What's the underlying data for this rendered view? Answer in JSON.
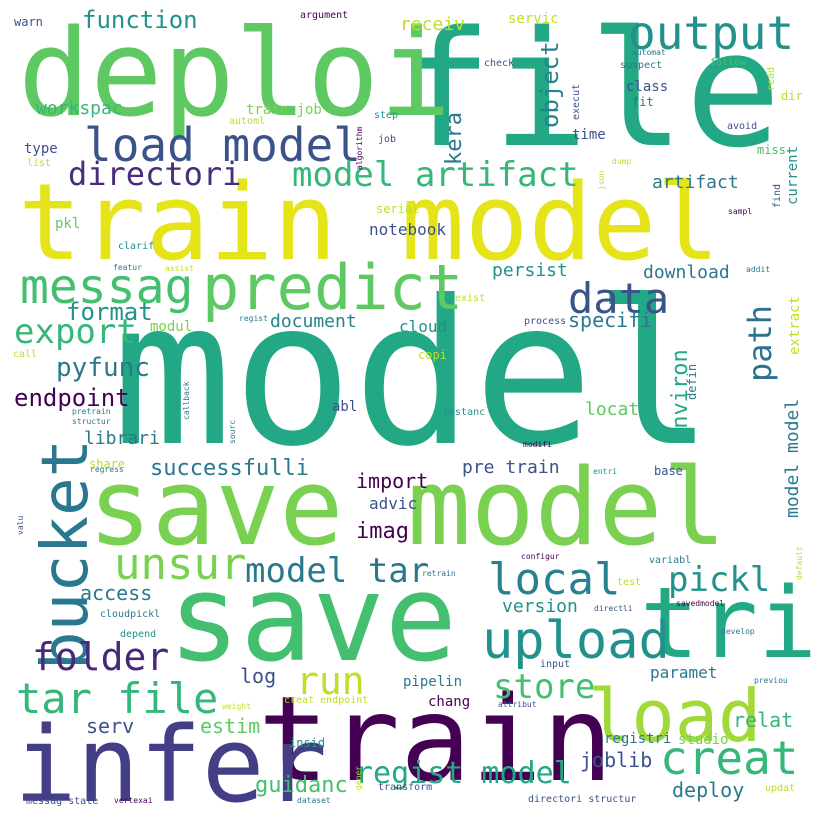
{
  "palette": {
    "dark_purple": "#440154",
    "indigo": "#3b528b",
    "slate_blue": "#414487",
    "teal_blue": "#2a788e",
    "teal": "#21918c",
    "green_teal": "#22a884",
    "green": "#44bf70",
    "lime": "#7ad151",
    "yellow_green": "#bddf26",
    "yellow": "#fde725"
  },
  "words": [
    {
      "id": "model",
      "text": "model",
      "color": "#22a884",
      "orientation": "horizontal"
    },
    {
      "id": "save-model",
      "text": "save model",
      "color": "#7ad151",
      "orientation": "horizontal"
    },
    {
      "id": "train-model",
      "text": "train model",
      "color": "#e4e419",
      "orientation": "horizontal"
    },
    {
      "id": "file",
      "text": "file",
      "color": "#22a884",
      "orientation": "horizontal"
    },
    {
      "id": "save",
      "text": "save",
      "color": "#44bf70",
      "orientation": "horizontal"
    },
    {
      "id": "deploi",
      "text": "deploi",
      "color": "#5ec962",
      "orientation": "horizontal"
    },
    {
      "id": "train",
      "text": "train",
      "color": "#440154",
      "orientation": "horizontal"
    },
    {
      "id": "infer",
      "text": "infer",
      "color": "#433e85",
      "orientation": "horizontal"
    },
    {
      "id": "tri",
      "text": "tri",
      "color": "#22a884",
      "orientation": "horizontal"
    },
    {
      "id": "predict",
      "text": "predict",
      "color": "#5ec962",
      "orientation": "horizontal"
    },
    {
      "id": "load",
      "text": "load",
      "color": "#a0da39",
      "orientation": "horizontal"
    },
    {
      "id": "bucket",
      "text": "bucket",
      "color": "#2a788e",
      "orientation": "vertical"
    },
    {
      "id": "load-model",
      "text": "load model",
      "color": "#3b528b",
      "orientation": "horizontal"
    },
    {
      "id": "output",
      "text": "output",
      "color": "#21918c",
      "orientation": "horizontal"
    },
    {
      "id": "messag",
      "text": "messag",
      "color": "#44bf70",
      "orientation": "horizontal"
    },
    {
      "id": "upload",
      "text": "upload",
      "color": "#21918c",
      "orientation": "horizontal"
    },
    {
      "id": "unsur",
      "text": "unsur",
      "color": "#7ad151",
      "orientation": "horizontal"
    },
    {
      "id": "local",
      "text": "local",
      "color": "#26828e",
      "orientation": "horizontal"
    },
    {
      "id": "creat",
      "text": "creat",
      "color": "#35b779",
      "orientation": "horizontal"
    },
    {
      "id": "tar-file",
      "text": "tar file",
      "color": "#35b779",
      "orientation": "horizontal"
    },
    {
      "id": "folder",
      "text": "folder",
      "color": "#482878",
      "orientation": "horizontal"
    },
    {
      "id": "data",
      "text": "data",
      "color": "#3b528b",
      "orientation": "horizontal"
    },
    {
      "id": "model-artifact",
      "text": "model artifact",
      "color": "#35b779",
      "orientation": "horizontal"
    },
    {
      "id": "directori",
      "text": "directori",
      "color": "#472d7b",
      "orientation": "horizontal"
    },
    {
      "id": "model-tar",
      "text": "model tar",
      "color": "#2a788e",
      "orientation": "horizontal"
    },
    {
      "id": "export",
      "text": "export",
      "color": "#35b779",
      "orientation": "horizontal"
    },
    {
      "id": "run",
      "text": "run",
      "color": "#bddf26",
      "orientation": "horizontal"
    },
    {
      "id": "store",
      "text": "store",
      "color": "#44bf70",
      "orientation": "horizontal"
    },
    {
      "id": "pickl",
      "text": "pickl",
      "color": "#21918c",
      "orientation": "horizontal"
    },
    {
      "id": "regist-model",
      "text": "regist model",
      "color": "#22a884",
      "orientation": "horizontal"
    },
    {
      "id": "path",
      "text": "path",
      "color": "#2c728e",
      "orientation": "vertical"
    },
    {
      "id": "object",
      "text": "object",
      "color": "#26828e",
      "orientation": "vertical"
    },
    {
      "id": "kera",
      "text": "kera",
      "color": "#2a788e",
      "orientation": "vertical"
    },
    {
      "id": "function",
      "text": "function",
      "color": "#21918c",
      "orientation": "horizontal"
    },
    {
      "id": "environ",
      "text": "environ",
      "color": "#22a884",
      "orientation": "vertical"
    },
    {
      "id": "model-model",
      "text": "model model",
      "color": "#2a788e",
      "orientation": "vertical"
    },
    {
      "id": "pyfunc",
      "text": "pyfunc",
      "color": "#2a788e",
      "orientation": "horizontal"
    },
    {
      "id": "endpoint",
      "text": "endpoint",
      "color": "#440154",
      "orientation": "horizontal"
    },
    {
      "id": "format",
      "text": "format",
      "color": "#21918c",
      "orientation": "horizontal"
    },
    {
      "id": "specifi",
      "text": "specifi",
      "color": "#2a788e",
      "orientation": "horizontal"
    },
    {
      "id": "imag",
      "text": "imag",
      "color": "#440154",
      "orientation": "horizontal"
    },
    {
      "id": "import",
      "text": "import",
      "color": "#440154",
      "orientation": "horizontal"
    },
    {
      "id": "successfulli",
      "text": "successfulli",
      "color": "#2a788e",
      "orientation": "horizontal"
    },
    {
      "id": "document",
      "text": "document",
      "color": "#26828e",
      "orientation": "horizontal"
    },
    {
      "id": "access",
      "text": "access",
      "color": "#2a788e",
      "orientation": "horizontal"
    },
    {
      "id": "guidanc",
      "text": "guidanc",
      "color": "#44bf70",
      "orientation": "horizontal"
    },
    {
      "id": "deploy",
      "text": "deploy",
      "color": "#2a788e",
      "orientation": "horizontal"
    },
    {
      "id": "estim",
      "text": "estim",
      "color": "#5ec962",
      "orientation": "horizontal"
    },
    {
      "id": "relat",
      "text": "relat",
      "color": "#35b779",
      "orientation": "horizontal"
    },
    {
      "id": "serv",
      "text": "serv",
      "color": "#3b528b",
      "orientation": "horizontal"
    },
    {
      "id": "log",
      "text": "log",
      "color": "#3b528b",
      "orientation": "horizontal"
    },
    {
      "id": "joblib",
      "text": "joblib",
      "color": "#3b528b",
      "orientation": "horizontal"
    },
    {
      "id": "librari",
      "text": "librari",
      "color": "#2a788e",
      "orientation": "horizontal"
    },
    {
      "id": "version",
      "text": "version",
      "color": "#21918c",
      "orientation": "horizontal"
    },
    {
      "id": "pre-train",
      "text": "pre train",
      "color": "#3b528b",
      "orientation": "horizontal"
    },
    {
      "id": "artifact",
      "text": "artifact",
      "color": "#2a788e",
      "orientation": "horizontal"
    },
    {
      "id": "download",
      "text": "download",
      "color": "#2a788e",
      "orientation": "horizontal"
    },
    {
      "id": "persist",
      "text": "persist",
      "color": "#21918c",
      "orientation": "horizontal"
    },
    {
      "id": "notebook",
      "text": "notebook",
      "color": "#3b528b",
      "orientation": "horizontal"
    },
    {
      "id": "workspac",
      "text": "workspac",
      "color": "#35b779",
      "orientation": "horizontal"
    },
    {
      "id": "locat",
      "text": "locat",
      "color": "#5ec962",
      "orientation": "horizontal"
    },
    {
      "id": "paramet",
      "text": "paramet",
      "color": "#2a788e",
      "orientation": "horizontal"
    },
    {
      "id": "advic",
      "text": "advic",
      "color": "#3b528b",
      "orientation": "horizontal"
    },
    {
      "id": "cloud",
      "text": "cloud",
      "color": "#21918c",
      "orientation": "horizontal"
    },
    {
      "id": "receiv",
      "text": "receiv",
      "color": "#bddf26",
      "orientation": "horizontal"
    },
    {
      "id": "type",
      "text": "type",
      "color": "#3b528b",
      "orientation": "horizontal"
    },
    {
      "id": "time",
      "text": "time",
      "color": "#3b528b",
      "orientation": "horizontal"
    },
    {
      "id": "class",
      "text": "class",
      "color": "#3b528b",
      "orientation": "horizontal"
    },
    {
      "id": "pkl",
      "text": "pkl",
      "color": "#5ec962",
      "orientation": "horizontal"
    },
    {
      "id": "abl",
      "text": "abl",
      "color": "#3b528b",
      "orientation": "horizontal"
    },
    {
      "id": "studio",
      "text": "studio",
      "color": "#7ad151",
      "orientation": "horizontal"
    },
    {
      "id": "train-job",
      "text": "train job",
      "color": "#7ad151",
      "orientation": "horizontal"
    },
    {
      "id": "servic",
      "text": "servic",
      "color": "#bddf26",
      "orientation": "horizontal"
    },
    {
      "id": "fit",
      "text": "fit",
      "color": "#2a788e",
      "orientation": "horizontal"
    },
    {
      "id": "current",
      "text": "current",
      "color": "#21918c",
      "orientation": "vertical"
    },
    {
      "id": "modul",
      "text": "modul",
      "color": "#7ad151",
      "orientation": "horizontal"
    },
    {
      "id": "registri",
      "text": "registri",
      "color": "#2a788e",
      "orientation": "horizontal"
    },
    {
      "id": "pipelin",
      "text": "pipelin",
      "color": "#2a788e",
      "orientation": "horizontal"
    },
    {
      "id": "chang",
      "text": "chang",
      "color": "#440154",
      "orientation": "horizontal"
    },
    {
      "id": "extract",
      "text": "extract",
      "color": "#bddf26",
      "orientation": "vertical"
    },
    {
      "id": "defin",
      "text": "defin",
      "color": "#2a788e",
      "orientation": "vertical"
    },
    {
      "id": "base",
      "text": "base",
      "color": "#3b528b",
      "orientation": "horizontal"
    },
    {
      "id": "copi",
      "text": "copi",
      "color": "#bddf26",
      "orientation": "horizontal"
    },
    {
      "id": "insid",
      "text": "insid",
      "color": "#21918c",
      "orientation": "horizontal"
    },
    {
      "id": "share",
      "text": "share",
      "color": "#bddf26",
      "orientation": "horizontal"
    },
    {
      "id": "warn",
      "text": "warn",
      "color": "#3b528b",
      "orientation": "horizontal"
    },
    {
      "id": "argument",
      "text": "argument",
      "color": "#440154",
      "orientation": "horizontal"
    },
    {
      "id": "check",
      "text": "check",
      "color": "#3b528b",
      "orientation": "horizontal"
    },
    {
      "id": "automat",
      "text": "automat",
      "color": "#2a788e",
      "orientation": "horizontal"
    },
    {
      "id": "suspect",
      "text": "suspect",
      "color": "#2a788e",
      "orientation": "horizontal"
    },
    {
      "id": "follow",
      "text": "follow",
      "color": "#44bf70",
      "orientation": "horizontal"
    },
    {
      "id": "read",
      "text": "read",
      "color": "#bddf26",
      "orientation": "vertical"
    },
    {
      "id": "dir",
      "text": "dir",
      "color": "#bddf26",
      "orientation": "horizontal"
    },
    {
      "id": "avoid",
      "text": "avoid",
      "color": "#3b528b",
      "orientation": "horizontal"
    },
    {
      "id": "miss",
      "text": "miss",
      "color": "#44bf70",
      "orientation": "horizontal"
    },
    {
      "id": "find",
      "text": "find",
      "color": "#3b528b",
      "orientation": "vertical"
    },
    {
      "id": "sampl",
      "text": "sampl",
      "color": "#440154",
      "orientation": "horizontal"
    },
    {
      "id": "addit",
      "text": "addit",
      "color": "#2a788e",
      "orientation": "horizontal"
    },
    {
      "id": "automl",
      "text": "automl",
      "color": "#bddf26",
      "orientation": "horizontal"
    },
    {
      "id": "step",
      "text": "step",
      "color": "#21918c",
      "orientation": "horizontal"
    },
    {
      "id": "algorithm",
      "text": "algorithm",
      "color": "#440154",
      "orientation": "vertical"
    },
    {
      "id": "job",
      "text": "job",
      "color": "#3b528b",
      "orientation": "horizontal"
    },
    {
      "id": "execut",
      "text": "execut",
      "color": "#3b528b",
      "orientation": "vertical"
    },
    {
      "id": "json",
      "text": "json",
      "color": "#bddf26",
      "orientation": "vertical"
    },
    {
      "id": "dump",
      "text": "dump",
      "color": "#bddf26",
      "orientation": "horizontal"
    },
    {
      "id": "list",
      "text": "list",
      "color": "#bddf26",
      "orientation": "horizontal"
    },
    {
      "id": "serial",
      "text": "serial",
      "color": "#bddf26",
      "orientation": "horizontal"
    },
    {
      "id": "clarif",
      "text": "clarif",
      "color": "#21918c",
      "orientation": "horizontal"
    },
    {
      "id": "featur",
      "text": "featur",
      "color": "#2a788e",
      "orientation": "horizontal"
    },
    {
      "id": "assist",
      "text": "assist",
      "color": "#bddf26",
      "orientation": "horizontal"
    },
    {
      "id": "exist",
      "text": "exist",
      "color": "#bddf26",
      "orientation": "horizontal"
    },
    {
      "id": "regist",
      "text": "regist",
      "color": "#2a788e",
      "orientation": "horizontal"
    },
    {
      "id": "process",
      "text": "process",
      "color": "#3b528b",
      "orientation": "horizontal"
    },
    {
      "id": "call",
      "text": "call",
      "color": "#bddf26",
      "orientation": "horizontal"
    },
    {
      "id": "callback",
      "text": "callback",
      "color": "#2a788e",
      "orientation": "vertical"
    },
    {
      "id": "pretrain",
      "text": "pretrain",
      "color": "#2a788e",
      "orientation": "horizontal"
    },
    {
      "id": "structur",
      "text": "structur",
      "color": "#2a788e",
      "orientation": "horizontal"
    },
    {
      "id": "sourc",
      "text": "sourc",
      "color": "#2a788e",
      "orientation": "vertical"
    },
    {
      "id": "instanc",
      "text": "instanc",
      "color": "#21918c",
      "orientation": "horizontal"
    },
    {
      "id": "modifi",
      "text": "modifi",
      "color": "#440154",
      "orientation": "horizontal"
    },
    {
      "id": "entri",
      "text": "entri",
      "color": "#21918c",
      "orientation": "horizontal"
    },
    {
      "id": "regress",
      "text": "regress",
      "color": "#2a788e",
      "orientation": "horizontal"
    },
    {
      "id": "valu",
      "text": "valu",
      "color": "#3b528b",
      "orientation": "vertical"
    },
    {
      "id": "configur",
      "text": "configur",
      "color": "#440154",
      "orientation": "horizontal"
    },
    {
      "id": "variabl",
      "text": "variabl",
      "color": "#2a788e",
      "orientation": "horizontal"
    },
    {
      "id": "default",
      "text": "default",
      "color": "#bddf26",
      "orientation": "vertical"
    },
    {
      "id": "retrain",
      "text": "retrain",
      "color": "#2a788e",
      "orientation": "horizontal"
    },
    {
      "id": "test",
      "text": "test",
      "color": "#bddf26",
      "orientation": "horizontal"
    },
    {
      "id": "savedmodel",
      "text": "savedmodel",
      "color": "#440154",
      "orientation": "horizontal"
    },
    {
      "id": "cloudpickl",
      "text": "cloudpickl",
      "color": "#2a788e",
      "orientation": "horizontal"
    },
    {
      "id": "directli",
      "text": "directli",
      "color": "#3b528b",
      "orientation": "horizontal"
    },
    {
      "id": "depend",
      "text": "depend",
      "color": "#21918c",
      "orientation": "horizontal"
    },
    {
      "id": "develop",
      "text": "develop",
      "color": "#2a788e",
      "orientation": "horizontal"
    },
    {
      "id": "input",
      "text": "input",
      "color": "#3b528b",
      "orientation": "horizontal"
    },
    {
      "id": "previou",
      "text": "previou",
      "color": "#2a788e",
      "orientation": "horizontal"
    },
    {
      "id": "weight",
      "text": "weight",
      "color": "#bddf26",
      "orientation": "horizontal"
    },
    {
      "id": "creat-endpoint",
      "text": "creat endpoint",
      "color": "#bddf26",
      "orientation": "horizontal"
    },
    {
      "id": "attribut",
      "text": "attribut",
      "color": "#3b528b",
      "orientation": "horizontal"
    },
    {
      "id": "gener",
      "text": "gener",
      "color": "#bddf26",
      "orientation": "vertical"
    },
    {
      "id": "transform",
      "text": "transform",
      "color": "#3b528b",
      "orientation": "horizontal"
    },
    {
      "id": "dataset",
      "text": "dataset",
      "color": "#2a788e",
      "orientation": "horizontal"
    },
    {
      "id": "messag-state",
      "text": "messag state",
      "color": "#3b528b",
      "orientation": "horizontal"
    },
    {
      "id": "vertexai",
      "text": "vertexai",
      "color": "#440154",
      "orientation": "horizontal"
    },
    {
      "id": "directori-structur",
      "text": "directori structur",
      "color": "#3b528b",
      "orientation": "horizontal"
    },
    {
      "id": "updat",
      "text": "updat",
      "color": "#bddf26",
      "orientation": "horizontal"
    }
  ]
}
